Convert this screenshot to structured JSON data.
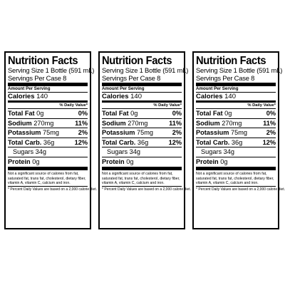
{
  "panels": [
    {
      "title": "Nutrition Facts",
      "serving_size": "Serving Size 1 Bottle (591 mL)",
      "servings_per_case": "Servings Per Case 8",
      "amount_per_serving": "Amount Per Serving",
      "calories_label": "Calories",
      "calories_value": "140",
      "daily_value_header": "% Daily Value*",
      "total_fat": {
        "label": "Total Fat",
        "amount": "0g",
        "percent": "0%"
      },
      "sodium": {
        "label": "Sodium",
        "amount": "270mg",
        "percent": "11%"
      },
      "potassium": {
        "label": "Potassium",
        "amount": "75mg",
        "percent": "2%"
      },
      "total_carb": {
        "label": "Total Carb.",
        "amount": "36g",
        "percent": "12%"
      },
      "sugars": "Sugars 34g",
      "protein": {
        "label": "Protein",
        "amount": "0g"
      },
      "note": "Not a significant source of calories from fat, saturated fat, trans fat, cholesterol, dietary fiber, vitamin A, vitamin C, calcium and iron.",
      "footnote": "* Percent Daily Values are based on a 2,000 calorie diet."
    },
    {
      "title": "Nutrition Facts",
      "serving_size": "Serving Size 1 Bottle (591 mL)",
      "servings_per_case": "Servings Per Case 8",
      "amount_per_serving": "Amount Per Serving",
      "calories_label": "Calories",
      "calories_value": "140",
      "daily_value_header": "% Daily Value*",
      "total_fat": {
        "label": "Total Fat",
        "amount": "0g",
        "percent": "0%"
      },
      "sodium": {
        "label": "Sodium",
        "amount": "270mg",
        "percent": "11%"
      },
      "potassium": {
        "label": "Potassium",
        "amount": "75mg",
        "percent": "2%"
      },
      "total_carb": {
        "label": "Total Carb.",
        "amount": "36g",
        "percent": "12%"
      },
      "sugars": "Sugars 34g",
      "protein": {
        "label": "Protein",
        "amount": "0g"
      },
      "note": "Not a significant source of calories from fat, saturated fat, trans fat, cholesterol, dietary fiber, vitamin A, vitamin C, calcium and iron.",
      "footnote": "* Percent Daily Values are based on a 2,000 calorie diet."
    },
    {
      "title": "Nutrition Facts",
      "serving_size": "Serving Size 1 Bottle (591 mL)",
      "servings_per_case": "Servings Per Case 8",
      "amount_per_serving": "Amount Per Serving",
      "calories_label": "Calories",
      "calories_value": "140",
      "daily_value_header": "% Daily Value*",
      "total_fat": {
        "label": "Total Fat",
        "amount": "0g",
        "percent": "0%"
      },
      "sodium": {
        "label": "Sodium",
        "amount": "270mg",
        "percent": "11%"
      },
      "potassium": {
        "label": "Potassium",
        "amount": "75mg",
        "percent": "2%"
      },
      "total_carb": {
        "label": "Total Carb.",
        "amount": "36g",
        "percent": "12%"
      },
      "sugars": "Sugars 34g",
      "protein": {
        "label": "Protein",
        "amount": "0g"
      },
      "note": "Not a significant source of calories from fat, saturated fat, trans fat, cholesterol, dietary fiber, vitamin A, vitamin C, calcium and iron.",
      "footnote": "* Percent Daily Values are based on a 2,000 calorie diet."
    }
  ]
}
